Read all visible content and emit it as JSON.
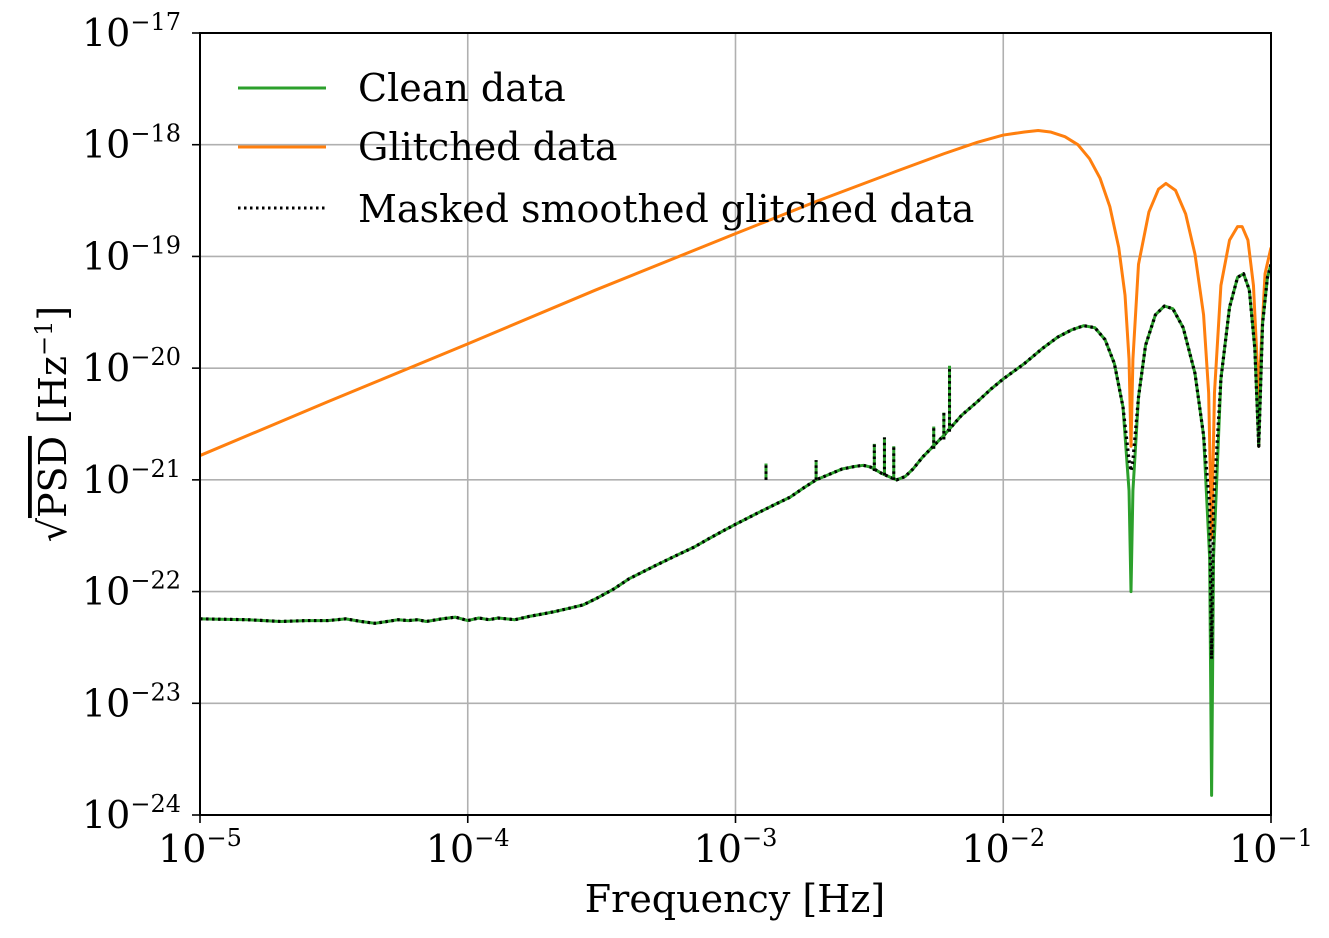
{
  "chart_data": {
    "type": "line",
    "title": "",
    "xlabel": "Frequency [Hz]",
    "ylabel": "√PSD [Hz⁻¹]",
    "ylabel_parts": {
      "radical": "√",
      "radicand": "PSD",
      "unit_open": "[Hz",
      "unit_exp": "−1",
      "unit_close": "]"
    },
    "xscale": "log",
    "yscale": "log",
    "xlim": [
      1e-05,
      0.1
    ],
    "ylim": [
      1e-24,
      1e-17
    ],
    "x_ticks": [
      {
        "value": 1e-05,
        "base": "10",
        "exp": "−5"
      },
      {
        "value": 0.0001,
        "base": "10",
        "exp": "−4"
      },
      {
        "value": 0.001,
        "base": "10",
        "exp": "−3"
      },
      {
        "value": 0.01,
        "base": "10",
        "exp": "−2"
      },
      {
        "value": 0.1,
        "base": "10",
        "exp": "−1"
      }
    ],
    "y_ticks": [
      {
        "value": 1e-24,
        "base": "10",
        "exp": "−24"
      },
      {
        "value": 1e-23,
        "base": "10",
        "exp": "−23"
      },
      {
        "value": 1e-22,
        "base": "10",
        "exp": "−22"
      },
      {
        "value": 1e-21,
        "base": "10",
        "exp": "−21"
      },
      {
        "value": 1e-20,
        "base": "10",
        "exp": "−20"
      },
      {
        "value": 1e-19,
        "base": "10",
        "exp": "−19"
      },
      {
        "value": 1e-18,
        "base": "10",
        "exp": "−18"
      },
      {
        "value": 1e-17,
        "base": "10",
        "exp": "−17"
      }
    ],
    "grid": true,
    "legend_position": "top-left",
    "series": [
      {
        "name": "Clean data",
        "color": "#2ca02c",
        "style": "solid",
        "points": [
          [
            1e-05,
            5.7e-23
          ],
          [
            1.5e-05,
            5.6e-23
          ],
          [
            2e-05,
            5.4e-23
          ],
          [
            2.5e-05,
            5.5e-23
          ],
          [
            3e-05,
            5.5e-23
          ],
          [
            3.5e-05,
            5.7e-23
          ],
          [
            4e-05,
            5.4e-23
          ],
          [
            4.5e-05,
            5.2e-23
          ],
          [
            5e-05,
            5.4e-23
          ],
          [
            5.5e-05,
            5.6e-23
          ],
          [
            6e-05,
            5.5e-23
          ],
          [
            6.5e-05,
            5.6e-23
          ],
          [
            7e-05,
            5.4e-23
          ],
          [
            8e-05,
            5.7e-23
          ],
          [
            9e-05,
            5.9e-23
          ],
          [
            0.0001,
            5.5e-23
          ],
          [
            0.00011,
            5.8e-23
          ],
          [
            0.00012,
            5.6e-23
          ],
          [
            0.00013,
            5.8e-23
          ],
          [
            0.00015,
            5.6e-23
          ],
          [
            0.00017,
            6e-23
          ],
          [
            0.00019,
            6.3e-23
          ],
          [
            0.00021,
            6.6e-23
          ],
          [
            0.00024,
            7.1e-23
          ],
          [
            0.00027,
            7.6e-23
          ],
          [
            0.0003,
            8.6e-23
          ],
          [
            0.00035,
            1.05e-22
          ],
          [
            0.0004,
            1.3e-22
          ],
          [
            0.0005,
            1.7e-22
          ],
          [
            0.0006,
            2.1e-22
          ],
          [
            0.0007,
            2.5e-22
          ],
          [
            0.0008,
            3e-22
          ],
          [
            0.0009,
            3.5e-22
          ],
          [
            0.001,
            4e-22
          ],
          [
            0.0012,
            5e-22
          ],
          [
            0.0014,
            6e-22
          ],
          [
            0.0016,
            7e-22
          ],
          [
            0.0018,
            8.5e-22
          ],
          [
            0.002,
            1e-21
          ],
          [
            0.0022,
            1.1e-21
          ],
          [
            0.0025,
            1.25e-21
          ],
          [
            0.0028,
            1.32e-21
          ],
          [
            0.003,
            1.35e-21
          ],
          [
            0.0032,
            1.3e-21
          ],
          [
            0.0035,
            1.15e-21
          ],
          [
            0.0038,
            1.05e-21
          ],
          [
            0.004,
            1e-21
          ],
          [
            0.0043,
            1.07e-21
          ],
          [
            0.0046,
            1.25e-21
          ],
          [
            0.005,
            1.6e-21
          ],
          [
            0.006,
            2.5e-21
          ],
          [
            0.007,
            3.8e-21
          ],
          [
            0.008,
            5e-21
          ],
          [
            0.009,
            6.5e-21
          ],
          [
            0.01,
            8e-21
          ],
          [
            0.012,
            1.1e-20
          ],
          [
            0.014,
            1.5e-20
          ],
          [
            0.016,
            1.9e-20
          ],
          [
            0.018,
            2.2e-20
          ],
          [
            0.02,
            2.4e-20
          ],
          [
            0.022,
            2.3e-20
          ],
          [
            0.024,
            1.8e-20
          ],
          [
            0.026,
            1.1e-20
          ],
          [
            0.028,
            4.5e-21
          ],
          [
            0.0295,
            8e-22
          ],
          [
            0.03,
            1e-22
          ],
          [
            0.0305,
            8e-22
          ],
          [
            0.032,
            5.5e-21
          ],
          [
            0.034,
            1.6e-20
          ],
          [
            0.037,
            3e-20
          ],
          [
            0.04,
            3.6e-20
          ],
          [
            0.043,
            3.4e-20
          ],
          [
            0.047,
            2.3e-20
          ],
          [
            0.052,
            9e-21
          ],
          [
            0.056,
            2.5e-21
          ],
          [
            0.059,
            2e-22
          ],
          [
            0.06,
            1.5e-24
          ],
          [
            0.061,
            2e-22
          ],
          [
            0.065,
            8e-21
          ],
          [
            0.07,
            3.5e-20
          ],
          [
            0.075,
            6.5e-20
          ],
          [
            0.079,
            7e-20
          ],
          [
            0.083,
            5e-20
          ],
          [
            0.087,
            1.5e-20
          ],
          [
            0.09,
            2e-21
          ],
          [
            0.093,
            2.5e-20
          ],
          [
            0.097,
            6.5e-20
          ],
          [
            0.1,
            8.5e-20
          ]
        ]
      },
      {
        "name": "Glitched data",
        "color": "#ff7f0e",
        "style": "solid",
        "points": [
          [
            1e-05,
            1.65e-21
          ],
          [
            3e-05,
            5e-21
          ],
          [
            0.0001,
            1.65e-20
          ],
          [
            0.0003,
            5e-20
          ],
          [
            0.001,
            1.6e-19
          ],
          [
            0.002,
            3.1e-19
          ],
          [
            0.004,
            5.8e-19
          ],
          [
            0.006,
            8.3e-19
          ],
          [
            0.008,
            1.05e-18
          ],
          [
            0.01,
            1.22e-18
          ],
          [
            0.012,
            1.3e-18
          ],
          [
            0.0135,
            1.34e-18
          ],
          [
            0.015,
            1.3e-18
          ],
          [
            0.017,
            1.18e-18
          ],
          [
            0.019,
            1e-18
          ],
          [
            0.021,
            7.5e-19
          ],
          [
            0.023,
            5e-19
          ],
          [
            0.025,
            2.8e-19
          ],
          [
            0.027,
            1.2e-19
          ],
          [
            0.0285,
            4.5e-20
          ],
          [
            0.0295,
            1.2e-20
          ],
          [
            0.03,
            2e-21
          ],
          [
            0.0305,
            1.2e-20
          ],
          [
            0.032,
            8.5e-20
          ],
          [
            0.035,
            2.5e-19
          ],
          [
            0.038,
            4e-19
          ],
          [
            0.0405,
            4.5e-19
          ],
          [
            0.044,
            3.9e-19
          ],
          [
            0.048,
            2.4e-19
          ],
          [
            0.052,
            1.05e-19
          ],
          [
            0.056,
            3e-20
          ],
          [
            0.0585,
            6e-21
          ],
          [
            0.06,
            3e-22
          ],
          [
            0.0615,
            6e-21
          ],
          [
            0.065,
            5.5e-20
          ],
          [
            0.07,
            1.4e-19
          ],
          [
            0.075,
            1.85e-19
          ],
          [
            0.078,
            1.85e-19
          ],
          [
            0.082,
            1.4e-19
          ],
          [
            0.086,
            5.5e-20
          ],
          [
            0.089,
            1e-20
          ],
          [
            0.09,
            2e-21
          ],
          [
            0.091,
            1e-20
          ],
          [
            0.095,
            7e-20
          ],
          [
            0.1,
            1.2e-19
          ]
        ]
      },
      {
        "name": "Masked smoothed glitched data",
        "color": "#000000",
        "style": "dotted",
        "points": [
          [
            1e-05,
            5.7e-23
          ],
          [
            1.5e-05,
            5.6e-23
          ],
          [
            2e-05,
            5.4e-23
          ],
          [
            2.5e-05,
            5.5e-23
          ],
          [
            3e-05,
            5.5e-23
          ],
          [
            3.5e-05,
            5.7e-23
          ],
          [
            4e-05,
            5.4e-23
          ],
          [
            4.5e-05,
            5.2e-23
          ],
          [
            5e-05,
            5.4e-23
          ],
          [
            5.5e-05,
            5.6e-23
          ],
          [
            6e-05,
            5.5e-23
          ],
          [
            6.5e-05,
            5.6e-23
          ],
          [
            7e-05,
            5.4e-23
          ],
          [
            8e-05,
            5.7e-23
          ],
          [
            9e-05,
            5.9e-23
          ],
          [
            0.0001,
            5.5e-23
          ],
          [
            0.00011,
            5.8e-23
          ],
          [
            0.00012,
            5.6e-23
          ],
          [
            0.00013,
            5.8e-23
          ],
          [
            0.00015,
            5.6e-23
          ],
          [
            0.00017,
            6e-23
          ],
          [
            0.00019,
            6.3e-23
          ],
          [
            0.00021,
            6.6e-23
          ],
          [
            0.00024,
            7.1e-23
          ],
          [
            0.00027,
            7.6e-23
          ],
          [
            0.0003,
            8.6e-23
          ],
          [
            0.00035,
            1.05e-22
          ],
          [
            0.0004,
            1.3e-22
          ],
          [
            0.0005,
            1.7e-22
          ],
          [
            0.0006,
            2.1e-22
          ],
          [
            0.0007,
            2.5e-22
          ],
          [
            0.0008,
            3e-22
          ],
          [
            0.0009,
            3.5e-22
          ],
          [
            0.001,
            4e-22
          ],
          [
            0.0012,
            5e-22
          ],
          [
            0.0014,
            6e-22
          ],
          [
            0.0016,
            7e-22
          ],
          [
            0.0018,
            8.5e-22
          ],
          [
            0.002,
            1e-21
          ],
          [
            0.0022,
            1.1e-21
          ],
          [
            0.0025,
            1.25e-21
          ],
          [
            0.0028,
            1.32e-21
          ],
          [
            0.003,
            1.35e-21
          ],
          [
            0.0032,
            1.3e-21
          ],
          [
            0.0035,
            1.15e-21
          ],
          [
            0.0038,
            1.05e-21
          ],
          [
            0.004,
            1e-21
          ],
          [
            0.0043,
            1.07e-21
          ],
          [
            0.0046,
            1.25e-21
          ],
          [
            0.005,
            1.6e-21
          ],
          [
            0.006,
            2.5e-21
          ],
          [
            0.007,
            3.8e-21
          ],
          [
            0.008,
            5e-21
          ],
          [
            0.009,
            6.5e-21
          ],
          [
            0.01,
            8e-21
          ],
          [
            0.012,
            1.1e-20
          ],
          [
            0.014,
            1.5e-20
          ],
          [
            0.016,
            1.9e-20
          ],
          [
            0.018,
            2.2e-20
          ],
          [
            0.02,
            2.4e-20
          ],
          [
            0.022,
            2.3e-20
          ],
          [
            0.024,
            1.8e-20
          ],
          [
            0.026,
            1.1e-20
          ],
          [
            0.028,
            4.5e-21
          ],
          [
            0.0295,
            1.5e-21
          ],
          [
            0.03,
            1.2e-21
          ],
          [
            0.0305,
            1.5e-21
          ],
          [
            0.032,
            5.5e-21
          ],
          [
            0.034,
            1.6e-20
          ],
          [
            0.037,
            3e-20
          ],
          [
            0.04,
            3.6e-20
          ],
          [
            0.043,
            3.4e-20
          ],
          [
            0.047,
            2.3e-20
          ],
          [
            0.052,
            9e-21
          ],
          [
            0.056,
            2.5e-21
          ],
          [
            0.059,
            6e-22
          ],
          [
            0.06,
            2.5e-23
          ],
          [
            0.061,
            6e-22
          ],
          [
            0.065,
            8e-21
          ],
          [
            0.07,
            3.5e-20
          ],
          [
            0.075,
            6.5e-20
          ],
          [
            0.079,
            7e-20
          ],
          [
            0.083,
            5e-20
          ],
          [
            0.087,
            1.5e-20
          ],
          [
            0.09,
            2e-21
          ],
          [
            0.093,
            2.5e-20
          ],
          [
            0.097,
            6.5e-20
          ],
          [
            0.1,
            8.5e-20
          ]
        ]
      }
    ],
    "spikes": [
      {
        "series": "Clean data",
        "f": 0.0013,
        "low": 1e-21,
        "high": 1.4e-21
      },
      {
        "series": "Clean data",
        "f": 0.002,
        "low": 1e-21,
        "high": 1.5e-21
      },
      {
        "series": "Clean data",
        "f": 0.0033,
        "low": 1.2e-21,
        "high": 2.1e-21
      },
      {
        "series": "Clean data",
        "f": 0.0036,
        "low": 1.1e-21,
        "high": 2.4e-21
      },
      {
        "series": "Clean data",
        "f": 0.0039,
        "low": 1e-21,
        "high": 2e-21
      },
      {
        "series": "Clean data",
        "f": 0.0055,
        "low": 1.9e-21,
        "high": 3e-21
      },
      {
        "series": "Clean data",
        "f": 0.006,
        "low": 2.3e-21,
        "high": 4e-21
      },
      {
        "series": "Clean data",
        "f": 0.0063,
        "low": 2.7e-21,
        "high": 1.05e-20
      },
      {
        "series": "Masked smoothed glitched data",
        "f": 0.0013,
        "low": 1e-21,
        "high": 1.4e-21
      },
      {
        "series": "Masked smoothed glitched data",
        "f": 0.002,
        "low": 1e-21,
        "high": 1.5e-21
      },
      {
        "series": "Masked smoothed glitched data",
        "f": 0.0033,
        "low": 1.2e-21,
        "high": 2.1e-21
      },
      {
        "series": "Masked smoothed glitched data",
        "f": 0.0036,
        "low": 1.1e-21,
        "high": 2.4e-21
      },
      {
        "series": "Masked smoothed glitched data",
        "f": 0.0039,
        "low": 1e-21,
        "high": 2e-21
      },
      {
        "series": "Masked smoothed glitched data",
        "f": 0.0055,
        "low": 1.9e-21,
        "high": 3e-21
      },
      {
        "series": "Masked smoothed glitched data",
        "f": 0.006,
        "low": 2.3e-21,
        "high": 4e-21
      },
      {
        "series": "Masked smoothed glitched data",
        "f": 0.0063,
        "low": 2.7e-21,
        "high": 1.05e-20
      }
    ]
  }
}
